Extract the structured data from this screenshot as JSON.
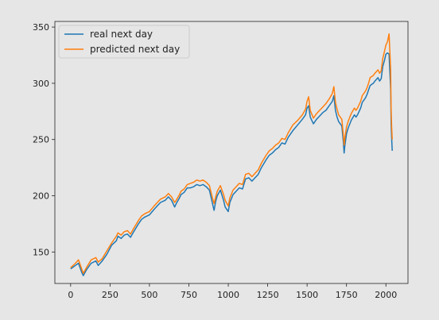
{
  "chart_data": {
    "type": "line",
    "title": "",
    "xlabel": "",
    "ylabel": "",
    "xlim": [
      -100,
      2140
    ],
    "ylim": [
      122,
      355
    ],
    "xticks": [
      0,
      250,
      500,
      750,
      1000,
      1250,
      1500,
      1750,
      2000
    ],
    "yticks": [
      150,
      200,
      250,
      300,
      350
    ],
    "grid": false,
    "legend_position": "top-left",
    "colors": {
      "figure_bg": "#e6e6e6",
      "axes_bg": "#e6e6e6"
    },
    "series": [
      {
        "name": "real next day",
        "color": "#1f77b4",
        "points": [
          [
            0,
            135
          ],
          [
            30,
            138
          ],
          [
            50,
            140
          ],
          [
            70,
            132
          ],
          [
            80,
            129
          ],
          [
            100,
            134
          ],
          [
            130,
            140
          ],
          [
            160,
            142
          ],
          [
            175,
            138
          ],
          [
            200,
            142
          ],
          [
            230,
            148
          ],
          [
            260,
            156
          ],
          [
            290,
            160
          ],
          [
            300,
            164
          ],
          [
            320,
            162
          ],
          [
            340,
            165
          ],
          [
            360,
            166
          ],
          [
            380,
            163
          ],
          [
            400,
            168
          ],
          [
            430,
            175
          ],
          [
            450,
            179
          ],
          [
            470,
            181
          ],
          [
            500,
            183
          ],
          [
            530,
            188
          ],
          [
            550,
            191
          ],
          [
            570,
            194
          ],
          [
            600,
            196
          ],
          [
            620,
            199
          ],
          [
            640,
            196
          ],
          [
            660,
            190
          ],
          [
            670,
            193
          ],
          [
            690,
            198
          ],
          [
            700,
            201
          ],
          [
            720,
            203
          ],
          [
            740,
            207
          ],
          [
            760,
            207
          ],
          [
            780,
            208
          ],
          [
            800,
            210
          ],
          [
            820,
            209
          ],
          [
            840,
            210
          ],
          [
            860,
            208
          ],
          [
            880,
            205
          ],
          [
            900,
            193
          ],
          [
            910,
            187
          ],
          [
            920,
            195
          ],
          [
            930,
            200
          ],
          [
            950,
            205
          ],
          [
            970,
            196
          ],
          [
            980,
            190
          ],
          [
            1000,
            186
          ],
          [
            1010,
            194
          ],
          [
            1030,
            201
          ],
          [
            1050,
            204
          ],
          [
            1070,
            207
          ],
          [
            1090,
            206
          ],
          [
            1110,
            215
          ],
          [
            1130,
            216
          ],
          [
            1150,
            213
          ],
          [
            1170,
            216
          ],
          [
            1190,
            219
          ],
          [
            1210,
            225
          ],
          [
            1240,
            232
          ],
          [
            1260,
            236
          ],
          [
            1280,
            238
          ],
          [
            1300,
            241
          ],
          [
            1320,
            243
          ],
          [
            1340,
            247
          ],
          [
            1360,
            246
          ],
          [
            1380,
            252
          ],
          [
            1410,
            258
          ],
          [
            1440,
            263
          ],
          [
            1470,
            268
          ],
          [
            1490,
            272
          ],
          [
            1500,
            278
          ],
          [
            1510,
            280
          ],
          [
            1520,
            270
          ],
          [
            1540,
            264
          ],
          [
            1560,
            268
          ],
          [
            1580,
            271
          ],
          [
            1600,
            274
          ],
          [
            1620,
            276
          ],
          [
            1640,
            280
          ],
          [
            1660,
            284
          ],
          [
            1670,
            289
          ],
          [
            1680,
            276
          ],
          [
            1690,
            270
          ],
          [
            1700,
            266
          ],
          [
            1710,
            264
          ],
          [
            1720,
            262
          ],
          [
            1730,
            248
          ],
          [
            1735,
            238
          ],
          [
            1740,
            245
          ],
          [
            1750,
            255
          ],
          [
            1760,
            260
          ],
          [
            1780,
            267
          ],
          [
            1800,
            272
          ],
          [
            1810,
            270
          ],
          [
            1820,
            272
          ],
          [
            1840,
            278
          ],
          [
            1850,
            283
          ],
          [
            1870,
            287
          ],
          [
            1880,
            290
          ],
          [
            1890,
            294
          ],
          [
            1900,
            298
          ],
          [
            1910,
            299
          ],
          [
            1920,
            300
          ],
          [
            1930,
            302
          ],
          [
            1950,
            305
          ],
          [
            1960,
            302
          ],
          [
            1970,
            304
          ],
          [
            1980,
            315
          ],
          [
            1990,
            320
          ],
          [
            2000,
            326
          ],
          [
            2010,
            327
          ],
          [
            2020,
            326
          ],
          [
            2025,
            310
          ],
          [
            2030,
            295
          ],
          [
            2033,
            264
          ],
          [
            2036,
            252
          ],
          [
            2040,
            240
          ]
        ]
      },
      {
        "name": "predicted next day",
        "color": "#ff7f0e",
        "points": [
          [
            0,
            136
          ],
          [
            30,
            140
          ],
          [
            50,
            143
          ],
          [
            70,
            135
          ],
          [
            80,
            131
          ],
          [
            100,
            136
          ],
          [
            130,
            143
          ],
          [
            160,
            145
          ],
          [
            175,
            141
          ],
          [
            200,
            144
          ],
          [
            230,
            151
          ],
          [
            260,
            158
          ],
          [
            290,
            164
          ],
          [
            300,
            167
          ],
          [
            320,
            165
          ],
          [
            340,
            168
          ],
          [
            360,
            169
          ],
          [
            380,
            166
          ],
          [
            400,
            171
          ],
          [
            430,
            178
          ],
          [
            450,
            182
          ],
          [
            470,
            184
          ],
          [
            500,
            186
          ],
          [
            530,
            191
          ],
          [
            550,
            194
          ],
          [
            570,
            197
          ],
          [
            600,
            199
          ],
          [
            620,
            202
          ],
          [
            640,
            199
          ],
          [
            660,
            194
          ],
          [
            670,
            196
          ],
          [
            690,
            201
          ],
          [
            700,
            204
          ],
          [
            720,
            206
          ],
          [
            740,
            210
          ],
          [
            760,
            211
          ],
          [
            780,
            212
          ],
          [
            800,
            214
          ],
          [
            820,
            213
          ],
          [
            840,
            214
          ],
          [
            860,
            212
          ],
          [
            880,
            209
          ],
          [
            900,
            198
          ],
          [
            910,
            193
          ],
          [
            920,
            199
          ],
          [
            930,
            204
          ],
          [
            950,
            209
          ],
          [
            970,
            201
          ],
          [
            980,
            196
          ],
          [
            1000,
            191
          ],
          [
            1010,
            198
          ],
          [
            1030,
            205
          ],
          [
            1050,
            208
          ],
          [
            1070,
            211
          ],
          [
            1090,
            210
          ],
          [
            1110,
            219
          ],
          [
            1130,
            220
          ],
          [
            1150,
            217
          ],
          [
            1170,
            220
          ],
          [
            1190,
            223
          ],
          [
            1210,
            229
          ],
          [
            1240,
            236
          ],
          [
            1260,
            240
          ],
          [
            1280,
            242
          ],
          [
            1300,
            245
          ],
          [
            1320,
            247
          ],
          [
            1340,
            251
          ],
          [
            1360,
            250
          ],
          [
            1380,
            256
          ],
          [
            1410,
            263
          ],
          [
            1440,
            267
          ],
          [
            1470,
            272
          ],
          [
            1490,
            277
          ],
          [
            1500,
            284
          ],
          [
            1510,
            288
          ],
          [
            1520,
            276
          ],
          [
            1540,
            269
          ],
          [
            1560,
            273
          ],
          [
            1580,
            276
          ],
          [
            1600,
            279
          ],
          [
            1620,
            282
          ],
          [
            1640,
            286
          ],
          [
            1660,
            291
          ],
          [
            1670,
            297
          ],
          [
            1680,
            283
          ],
          [
            1690,
            277
          ],
          [
            1700,
            272
          ],
          [
            1710,
            270
          ],
          [
            1720,
            268
          ],
          [
            1730,
            254
          ],
          [
            1735,
            245
          ],
          [
            1740,
            252
          ],
          [
            1750,
            261
          ],
          [
            1760,
            266
          ],
          [
            1780,
            273
          ],
          [
            1800,
            278
          ],
          [
            1810,
            276
          ],
          [
            1820,
            278
          ],
          [
            1840,
            284
          ],
          [
            1850,
            289
          ],
          [
            1870,
            293
          ],
          [
            1880,
            296
          ],
          [
            1890,
            300
          ],
          [
            1900,
            305
          ],
          [
            1910,
            306
          ],
          [
            1920,
            307
          ],
          [
            1930,
            309
          ],
          [
            1950,
            312
          ],
          [
            1960,
            309
          ],
          [
            1970,
            311
          ],
          [
            1980,
            322
          ],
          [
            1990,
            328
          ],
          [
            2000,
            334
          ],
          [
            2010,
            337
          ],
          [
            2020,
            344
          ],
          [
            2025,
            328
          ],
          [
            2030,
            312
          ],
          [
            2033,
            277
          ],
          [
            2036,
            262
          ],
          [
            2040,
            250
          ]
        ]
      }
    ]
  }
}
